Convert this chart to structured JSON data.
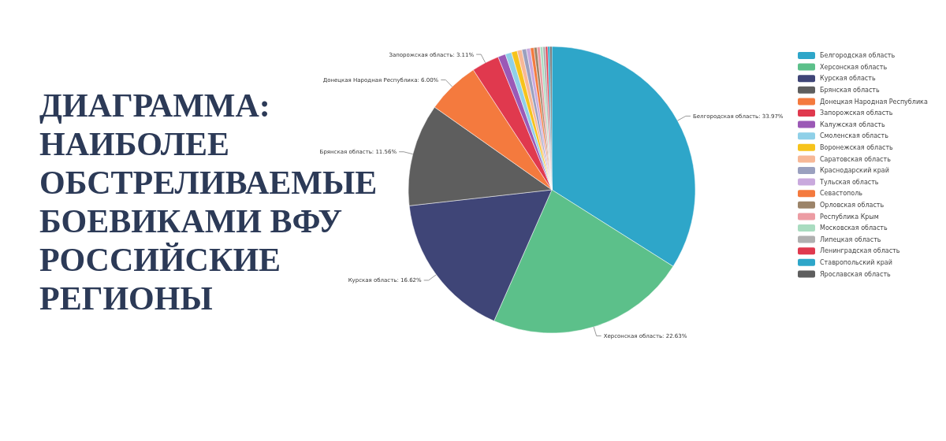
{
  "chart_data": {
    "type": "pie",
    "title": "ДИАГРАММА: НАИБОЛЕЕ ОБСТРЕЛИВАЕМЫЕ БОЕВИКАМИ ВФУ РОССИЙСКИЕ РЕГИОНЫ",
    "categories": [
      "Белгородская область",
      "Херсонская область",
      "Курская область",
      "Брянская область",
      "Донецкая Народная Республика",
      "Запорожская область",
      "Калужская область",
      "Смоленская область",
      "Воронежская область",
      "Саратовская область",
      "Краснодарский край",
      "Тульская область",
      "Севастополь",
      "Орловская область",
      "Республика Крым",
      "Московская область",
      "Липецкая область",
      "Ленинградская область",
      "Ставропольский край",
      "Ярославская область"
    ],
    "values": [
      33.97,
      22.63,
      16.62,
      11.56,
      6.0,
      3.11,
      0.86,
      0.7,
      0.65,
      0.55,
      0.5,
      0.45,
      0.4,
      0.35,
      0.35,
      0.3,
      0.3,
      0.25,
      0.25,
      0.2
    ],
    "value_labels": [
      "Белгородская область: 33.97%",
      "Херсонская область: 22.63%",
      "Курская область: 16.62%",
      "Брянская область: 11.56%",
      "Донецкая Народная Республика: 6.00%",
      "Запорожская область: 3.11%",
      null,
      null,
      null,
      null,
      null,
      null,
      null,
      null,
      null,
      null,
      null,
      null,
      null,
      null
    ],
    "colors": [
      "#2ea6c9",
      "#5cc08a",
      "#3f4577",
      "#5e5e5e",
      "#f47a3e",
      "#e0394e",
      "#9b59b6",
      "#8fd0e8",
      "#f6c31b",
      "#f7b897",
      "#9aa0bf",
      "#c9a9dd",
      "#f47a3e",
      "#9c8469",
      "#ec9ca3",
      "#a9dcc0",
      "#b0b0b0",
      "#e0394e",
      "#2ea6c9",
      "#5e5e5e"
    ],
    "legend": "right"
  }
}
